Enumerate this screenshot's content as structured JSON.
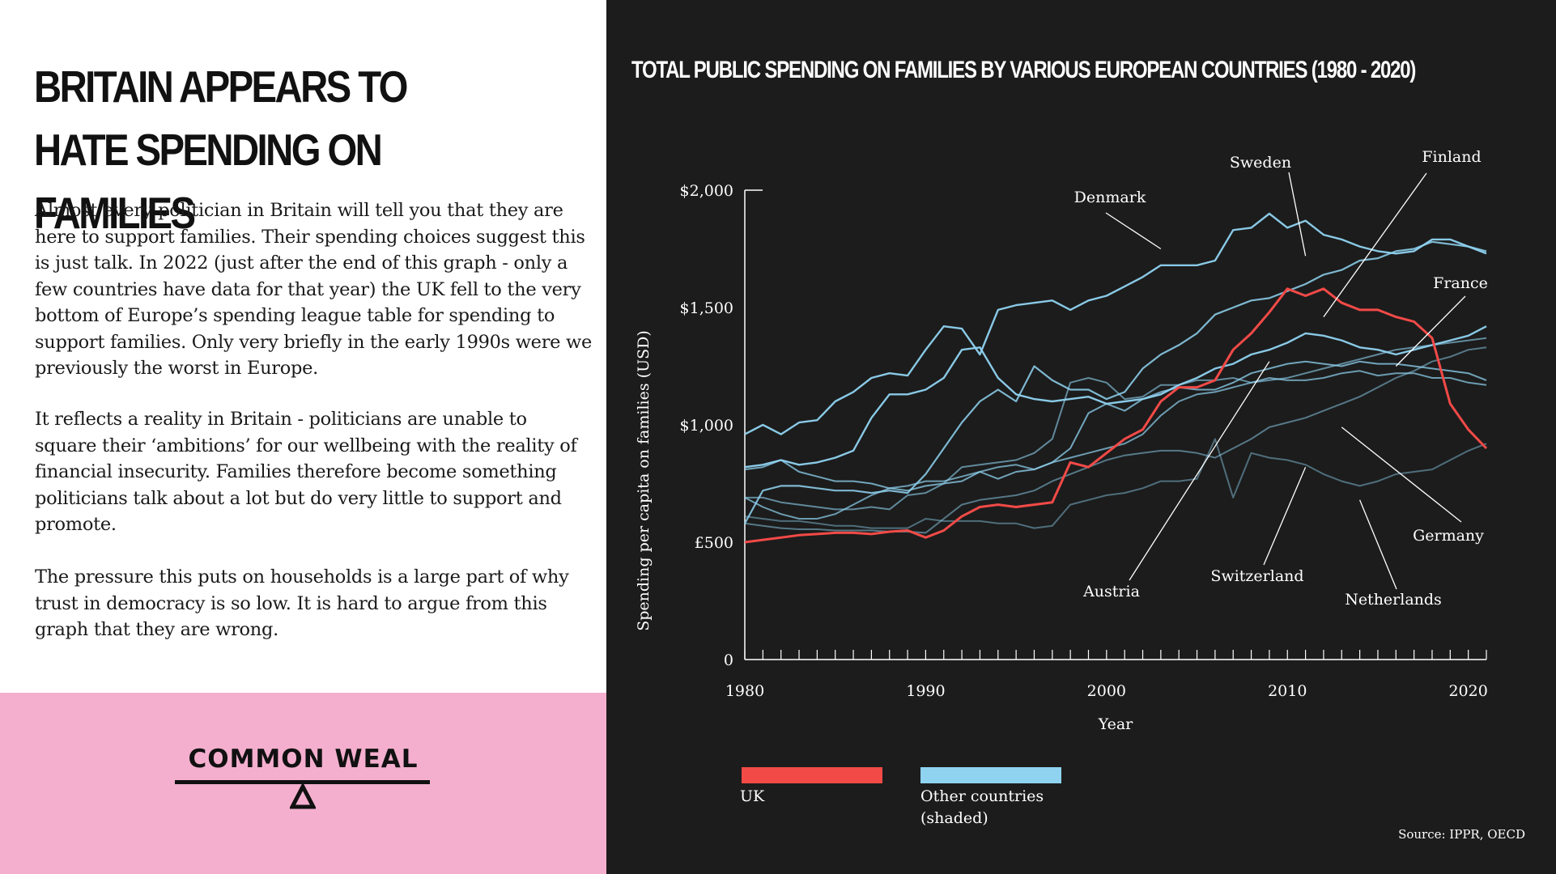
{
  "headline": "BRITAIN APPEARS TO HATE SPENDING ON FAMILIES",
  "paragraphs": [
    "Almost every politician in Britain will tell you that they are here to support families. Their spending choices suggest this is just talk. In 2022 (just after the end of this graph - only a few countries have data for that year) the UK fell to the very bottom of Europe’s spending league table for spending to support families. Only very briefly in the early 1990s were we previously the worst in Europe.",
    "It reflects a reality in Britain - politicians are unable to square their ‘ambitions’ for our wellbeing with the reality of financial insecurity. Families therefore become something politicians talk about a lot but do very little to support and promote.",
    "The pressure this puts on households is a large part of why trust in democracy is so low. It is hard to argue from this graph that they are wrong."
  ],
  "logo": {
    "name": "COMMON WEAL",
    "icon": "seesaw-triangle-icon"
  },
  "colors": {
    "uk": "#f24a47",
    "other": "#8fd3f1",
    "background": "#1c1c1c",
    "pink": "#f4afce"
  },
  "source": "Source: IPPR, OECD",
  "chart_data": {
    "type": "line",
    "title": "TOTAL PUBLIC SPENDING ON FAMILIES BY VARIOUS EUROPEAN COUNTRIES (1980 - 2020)",
    "xlabel": "Year",
    "ylabel": "Spending per capita on families (USD)",
    "xlim": [
      1980,
      2021
    ],
    "ylim": [
      0,
      2000
    ],
    "x_ticks": [
      1980,
      1990,
      2000,
      2010,
      2020
    ],
    "y_ticks": [
      0,
      500,
      1000,
      1500,
      2000
    ],
    "y_tick_labels": [
      "0",
      "£500",
      "$1,000",
      "$1,500",
      "$2,000"
    ],
    "legend": [
      {
        "label": "UK",
        "color": "#f24a47"
      },
      {
        "label": "Other countries (shaded)",
        "color": "#8fd3f1"
      }
    ],
    "annotations": [
      {
        "text": "Denmark",
        "series": "Denmark",
        "point": [
          2003,
          1750
        ]
      },
      {
        "text": "Sweden",
        "series": "Sweden",
        "point": [
          2011,
          1720
        ]
      },
      {
        "text": "Finland",
        "series": "Finland",
        "point": [
          2012,
          1460
        ]
      },
      {
        "text": "France",
        "series": "France",
        "point": [
          2016,
          1250
        ]
      },
      {
        "text": "Germany",
        "series": "Germany",
        "point": [
          2013,
          990
        ]
      },
      {
        "text": "Austria",
        "series": "Austria",
        "point": [
          2009,
          1270
        ]
      },
      {
        "text": "Switzerland",
        "series": "Switzerland",
        "point": [
          2011,
          820
        ]
      },
      {
        "text": "Netherlands",
        "series": "Netherlands",
        "point": [
          2014,
          680
        ]
      }
    ],
    "x": [
      1980,
      1981,
      1982,
      1983,
      1984,
      1985,
      1986,
      1987,
      1988,
      1989,
      1990,
      1991,
      1992,
      1993,
      1994,
      1995,
      1996,
      1997,
      1998,
      1999,
      2000,
      2001,
      2002,
      2003,
      2004,
      2005,
      2006,
      2007,
      2008,
      2009,
      2010,
      2011,
      2012,
      2013,
      2014,
      2015,
      2016,
      2017,
      2018,
      2019,
      2020,
      2021
    ],
    "series": [
      {
        "name": "Denmark",
        "color": "#8fd3f1",
        "width": 2.4,
        "opacity": 0.95,
        "values": [
          960,
          1000,
          960,
          1010,
          1020,
          1100,
          1140,
          1200,
          1220,
          1210,
          1320,
          1420,
          1410,
          1300,
          1490,
          1510,
          1520,
          1530,
          1490,
          1530,
          1550,
          1590,
          1630,
          1680,
          1680,
          1680,
          1700,
          1830,
          1840,
          1900,
          1840,
          1870,
          1810,
          1790,
          1760,
          1740,
          1730,
          1740,
          1790,
          1790,
          1760,
          1730
        ]
      },
      {
        "name": "Sweden",
        "color": "#8fd3f1",
        "width": 2.4,
        "opacity": 0.95,
        "values": [
          820,
          830,
          850,
          830,
          840,
          860,
          890,
          1030,
          1130,
          1130,
          1150,
          1200,
          1320,
          1330,
          1200,
          1130,
          1110,
          1100,
          1110,
          1120,
          1090,
          1100,
          1110,
          1130,
          1170,
          1200,
          1240,
          1260,
          1300,
          1320,
          1350,
          1390,
          1380,
          1360,
          1330,
          1320,
          1300,
          1320,
          1340,
          1360,
          1380,
          1420
        ]
      },
      {
        "name": "Finland",
        "color": "#8fd3f1",
        "width": 2.2,
        "opacity": 0.85,
        "values": [
          580,
          720,
          740,
          740,
          730,
          720,
          720,
          710,
          720,
          710,
          790,
          900,
          1010,
          1100,
          1150,
          1100,
          1250,
          1190,
          1150,
          1150,
          1110,
          1140,
          1240,
          1300,
          1340,
          1390,
          1470,
          1500,
          1530,
          1540,
          1570,
          1600,
          1640,
          1660,
          1700,
          1710,
          1740,
          1750,
          1780,
          1770,
          1760,
          1740
        ]
      },
      {
        "name": "France",
        "color": "#8fd3f1",
        "width": 2.0,
        "opacity": 0.75,
        "values": [
          810,
          820,
          850,
          800,
          780,
          760,
          760,
          750,
          730,
          720,
          740,
          750,
          760,
          800,
          770,
          800,
          810,
          840,
          900,
          1050,
          1090,
          1060,
          1110,
          1140,
          1160,
          1150,
          1150,
          1180,
          1220,
          1240,
          1260,
          1270,
          1260,
          1250,
          1270,
          1260,
          1260,
          1250,
          1240,
          1230,
          1220,
          1190
        ]
      },
      {
        "name": "Austria",
        "color": "#8fd3f1",
        "width": 2.0,
        "opacity": 0.7,
        "values": [
          690,
          650,
          620,
          600,
          600,
          620,
          660,
          700,
          730,
          740,
          760,
          760,
          780,
          800,
          820,
          830,
          810,
          840,
          860,
          880,
          900,
          920,
          960,
          1040,
          1100,
          1130,
          1140,
          1160,
          1180,
          1200,
          1190,
          1190,
          1200,
          1220,
          1230,
          1210,
          1220,
          1220,
          1200,
          1200,
          1180,
          1170
        ]
      },
      {
        "name": "Germany",
        "color": "#8fd3f1",
        "width": 2.0,
        "opacity": 0.6,
        "values": [
          690,
          690,
          670,
          660,
          650,
          640,
          640,
          650,
          640,
          700,
          710,
          750,
          820,
          830,
          840,
          850,
          880,
          940,
          1180,
          1200,
          1180,
          1110,
          1120,
          1170,
          1170,
          1190,
          1190,
          1200,
          1180,
          1190,
          1200,
          1220,
          1240,
          1260,
          1280,
          1300,
          1320,
          1330,
          1340,
          1350,
          1360,
          1370
        ]
      },
      {
        "name": "Switzerland",
        "color": "#8fd3f1",
        "width": 2.0,
        "opacity": 0.5,
        "values": [
          580,
          570,
          560,
          555,
          555,
          550,
          550,
          550,
          545,
          545,
          540,
          600,
          660,
          680,
          690,
          700,
          720,
          760,
          790,
          820,
          850,
          870,
          880,
          890,
          890,
          880,
          860,
          900,
          940,
          990,
          1010,
          1030,
          1060,
          1090,
          1120,
          1160,
          1200,
          1230,
          1270,
          1290,
          1320,
          1330
        ]
      },
      {
        "name": "Netherlands",
        "color": "#8fd3f1",
        "width": 2.0,
        "opacity": 0.45,
        "values": [
          610,
          600,
          590,
          590,
          580,
          570,
          570,
          560,
          560,
          560,
          600,
          590,
          590,
          590,
          580,
          580,
          560,
          570,
          660,
          680,
          700,
          710,
          730,
          760,
          760,
          770,
          940,
          690,
          880,
          860,
          850,
          830,
          790,
          760,
          740,
          760,
          790,
          800,
          810,
          850,
          890,
          920
        ]
      },
      {
        "name": "UK",
        "color": "#f24a47",
        "width": 3.0,
        "opacity": 1,
        "values": [
          500,
          510,
          520,
          530,
          535,
          540,
          540,
          535,
          545,
          550,
          520,
          550,
          610,
          650,
          660,
          650,
          660,
          670,
          840,
          820,
          880,
          940,
          980,
          1100,
          1160,
          1160,
          1190,
          1320,
          1390,
          1480,
          1580,
          1550,
          1580,
          1520,
          1490,
          1490,
          1460,
          1440,
          1370,
          1090,
          980,
          900
        ]
      }
    ]
  }
}
